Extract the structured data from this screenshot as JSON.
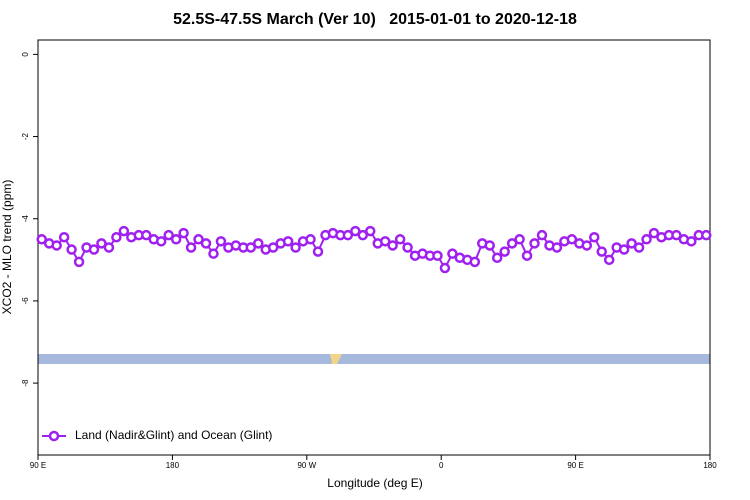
{
  "chart_data": {
    "type": "line",
    "title": "52.5S-47.5S March (Ver 10)   2015-01-01 to 2020-12-18",
    "x_label": "Longitude (deg E)",
    "y_label": "XCO2 - MLO trend (ppm)",
    "xlim": [
      90,
      540
    ],
    "xticks": [
      {
        "value": 90,
        "label": "90 E"
      },
      180,
      {
        "value": 270,
        "label": "90 W"
      },
      {
        "value": 360,
        "label": "0"
      },
      {
        "value": 450,
        "label": "90 E"
      },
      {
        "value": 540,
        "label": "180"
      }
    ],
    "ylim": [
      -9.75,
      0.35
    ],
    "yticks": [
      0,
      -2,
      -4,
      -6,
      -8
    ],
    "legend": "bottom-left",
    "x": [
      92.5,
      97.5,
      102.5,
      107.5,
      112.5,
      117.5,
      122.5,
      127.5,
      132.5,
      137.5,
      142.5,
      147.5,
      152.5,
      157.5,
      162.5,
      167.5,
      172.5,
      177.5,
      182.5,
      187.5,
      192.5,
      197.5,
      202.5,
      207.5,
      212.5,
      217.5,
      222.5,
      227.5,
      232.5,
      237.5,
      242.5,
      247.5,
      252.5,
      257.5,
      262.5,
      267.5,
      272.5,
      277.5,
      282.5,
      287.5,
      292.5,
      297.5,
      302.5,
      307.5,
      312.5,
      317.5,
      322.5,
      327.5,
      332.5,
      337.5,
      342.5,
      347.5,
      352.5,
      357.5,
      362.5,
      367.5,
      372.5,
      377.5,
      382.5,
      387.5,
      392.5,
      397.5,
      402.5,
      407.5,
      412.5,
      417.5,
      422.5,
      427.5,
      432.5,
      437.5,
      442.5,
      447.5,
      452.5,
      457.5,
      462.5,
      467.5,
      472.5,
      477.5,
      482.5,
      487.5,
      492.5,
      497.5,
      502.5,
      507.5,
      512.5,
      517.5,
      522.5,
      527.5,
      532.5,
      537.5
    ],
    "series": [
      {
        "name": "Land (Nadir&Glint) and Ocean (Glint)",
        "color": "#a020f0",
        "values": [
          -4.5,
          -4.6,
          -4.65,
          -4.45,
          -4.75,
          -5.05,
          -4.7,
          -4.75,
          -4.6,
          -4.7,
          -4.45,
          -4.3,
          -4.45,
          -4.4,
          -4.4,
          -4.5,
          -4.55,
          -4.4,
          -4.5,
          -4.35,
          -4.7,
          -4.5,
          -4.6,
          -4.85,
          -4.55,
          -4.7,
          -4.65,
          -4.7,
          -4.7,
          -4.6,
          -4.75,
          -4.7,
          -4.6,
          -4.55,
          -4.7,
          -4.55,
          -4.5,
          -4.8,
          -4.4,
          -4.35,
          -4.4,
          -4.4,
          -4.3,
          -4.4,
          -4.3,
          -4.6,
          -4.55,
          -4.65,
          -4.5,
          -4.7,
          -4.9,
          -4.85,
          -4.9,
          -4.9,
          -5.2,
          -4.85,
          -4.95,
          -5.0,
          -5.05,
          -4.6,
          -4.65,
          -4.95,
          -4.8,
          -4.6,
          -4.5,
          -4.9,
          -4.6,
          -4.4,
          -4.65,
          -4.7,
          -4.55,
          -4.5,
          -4.6,
          -4.65,
          -4.45,
          -4.8,
          -5.0,
          -4.7,
          -4.75,
          -4.6,
          -4.7,
          -4.5,
          -4.35,
          -4.45,
          -4.4,
          -4.4,
          -4.5,
          -4.55,
          -4.4,
          -4.4
        ]
      }
    ]
  }
}
